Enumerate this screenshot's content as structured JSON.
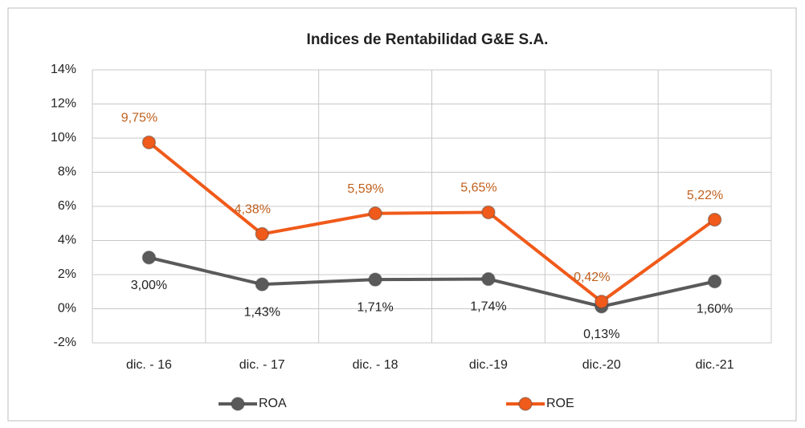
{
  "chart_data": {
    "type": "line",
    "title": "Indices de Rentabilidad G&E S.A.",
    "categories": [
      "dic. - 16",
      "dic. - 17",
      "dic. - 18",
      "dic.-19",
      "dic.-20",
      "dic.-21"
    ],
    "series": [
      {
        "name": "ROA",
        "color": "#5a5a5a",
        "values": [
          3.0,
          1.43,
          1.71,
          1.74,
          0.13,
          1.6
        ],
        "value_labels": [
          "3,00%",
          "1,43%",
          "1,71%",
          "1,74%",
          "0,13%",
          "1,60%"
        ]
      },
      {
        "name": "ROE",
        "color": "#f05a1a",
        "values": [
          9.75,
          4.38,
          5.59,
          5.65,
          0.42,
          5.22
        ],
        "value_labels": [
          "9,75%",
          "4,38%",
          "5,59%",
          "5,65%",
          "0,42%",
          "5,22%"
        ]
      }
    ],
    "ylim": [
      -2,
      14
    ],
    "yticks": [
      {
        "value": -2,
        "label": "-2%"
      },
      {
        "value": 0,
        "label": "0%"
      },
      {
        "value": 2,
        "label": "2%"
      },
      {
        "value": 4,
        "label": "4%"
      },
      {
        "value": 6,
        "label": "6%"
      },
      {
        "value": 8,
        "label": "8%"
      },
      {
        "value": 10,
        "label": "10%"
      },
      {
        "value": 12,
        "label": "12%"
      },
      {
        "value": 14,
        "label": "14%"
      }
    ],
    "grid": true,
    "legend": "bottom"
  }
}
